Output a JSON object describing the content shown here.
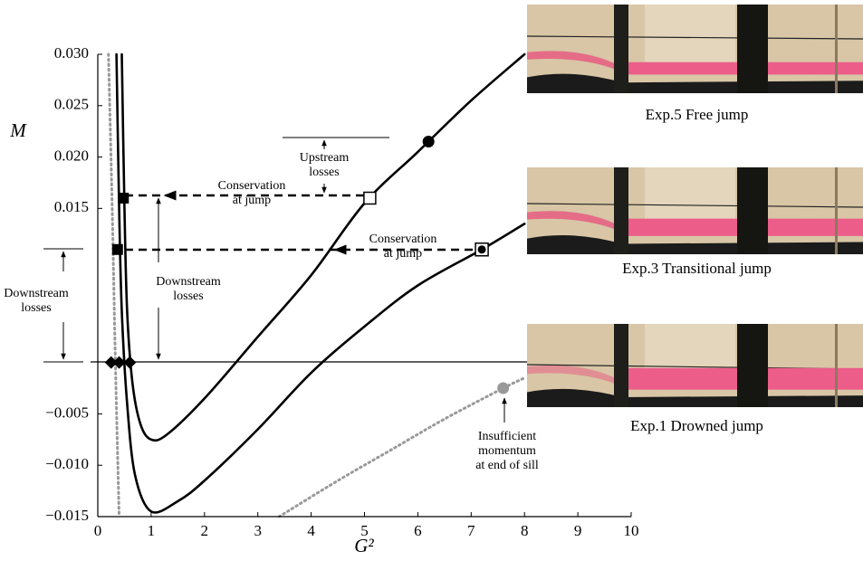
{
  "chart_data": {
    "type": "line",
    "x_label": "G²",
    "y_label": "M",
    "xlim": [
      0,
      10
    ],
    "ylim": [
      -0.015,
      0.03
    ],
    "xticks": [
      0,
      1,
      2,
      3,
      4,
      5,
      6,
      7,
      8,
      9,
      10
    ],
    "yticks": [
      {
        "value": -0.015,
        "label": "−0.015"
      },
      {
        "value": -0.01,
        "label": "−0.010"
      },
      {
        "value": -0.005,
        "label": "−0.005"
      },
      {
        "value": 0.015,
        "label": "0.015"
      },
      {
        "value": 0.02,
        "label": "0.020"
      },
      {
        "value": 0.025,
        "label": "0.025"
      },
      {
        "value": 0.03,
        "label": "0.030"
      }
    ],
    "series": [
      {
        "color": "#000000",
        "style": "solid",
        "x": [
          0.45,
          0.5,
          0.55,
          0.65,
          0.8,
          1.0,
          1.3,
          2.0,
          3.0,
          4.0,
          5.0,
          6.0,
          7.0,
          8.0
        ],
        "values": [
          0.03,
          0.015,
          0.005,
          -0.002,
          -0.006,
          -0.0075,
          -0.007,
          -0.0035,
          0.0025,
          0.0085,
          0.0155,
          0.0205,
          0.0255,
          0.03
        ]
      },
      {
        "color": "#000000",
        "style": "solid",
        "x": [
          0.35,
          0.4,
          0.45,
          0.55,
          0.7,
          1.0,
          1.5,
          2.0,
          3.0,
          4.0,
          5.0,
          6.0,
          7.2,
          8.0
        ],
        "values": [
          0.03,
          0.015,
          0.005,
          -0.004,
          -0.011,
          -0.0145,
          -0.0135,
          -0.0115,
          -0.0065,
          -0.001,
          0.0035,
          0.0075,
          0.011,
          0.0135
        ]
      },
      {
        "color": "#999999",
        "style": "dotted",
        "x": [
          0.2,
          0.27,
          0.33,
          0.4,
          null,
          3.4,
          4.5,
          5.5,
          6.5,
          7.6,
          8.0
        ],
        "values": [
          0.03,
          0.015,
          0.0,
          -0.015,
          null,
          -0.015,
          -0.0115,
          -0.0085,
          -0.0055,
          -0.0025,
          -0.0015
        ]
      }
    ],
    "markers": [
      {
        "shape": "circle",
        "color": "#000000",
        "x": 6.2,
        "y": 0.0215
      },
      {
        "shape": "open-square",
        "color": "#000000",
        "x": 5.1,
        "y": 0.016
      },
      {
        "shape": "dotted-square",
        "color": "#000000",
        "x": 7.2,
        "y": 0.011
      },
      {
        "shape": "circle",
        "color": "#999999",
        "x": 7.6,
        "y": -0.0025
      },
      {
        "shape": "square",
        "color": "#000000",
        "x": 0.48,
        "y": 0.016
      },
      {
        "shape": "square",
        "color": "#000000",
        "x": 0.37,
        "y": 0.011
      },
      {
        "shape": "diamond",
        "color": "#000000",
        "x": 0.25,
        "y": 0.0
      },
      {
        "shape": "diamond",
        "color": "#000000",
        "x": 0.4,
        "y": 0.0
      },
      {
        "shape": "diamond",
        "color": "#000000",
        "x": 0.6,
        "y": 0.0
      }
    ],
    "annotations": [
      {
        "lines": [
          "Upstream",
          "losses"
        ]
      },
      {
        "lines": [
          "Conservation",
          "at jump"
        ]
      },
      {
        "lines": [
          "Conservation",
          "at jump"
        ]
      },
      {
        "lines": [
          "Downstream",
          "losses"
        ]
      },
      {
        "lines": [
          "Downstream",
          "losses"
        ]
      },
      {
        "lines": [
          "Insufficient",
          "momentum",
          "at end of sill"
        ]
      }
    ],
    "photos": [
      {
        "caption": "Exp.5 Free jump"
      },
      {
        "caption": "Exp.3 Transitional jump"
      },
      {
        "caption": "Exp.1 Drowned jump"
      }
    ]
  }
}
